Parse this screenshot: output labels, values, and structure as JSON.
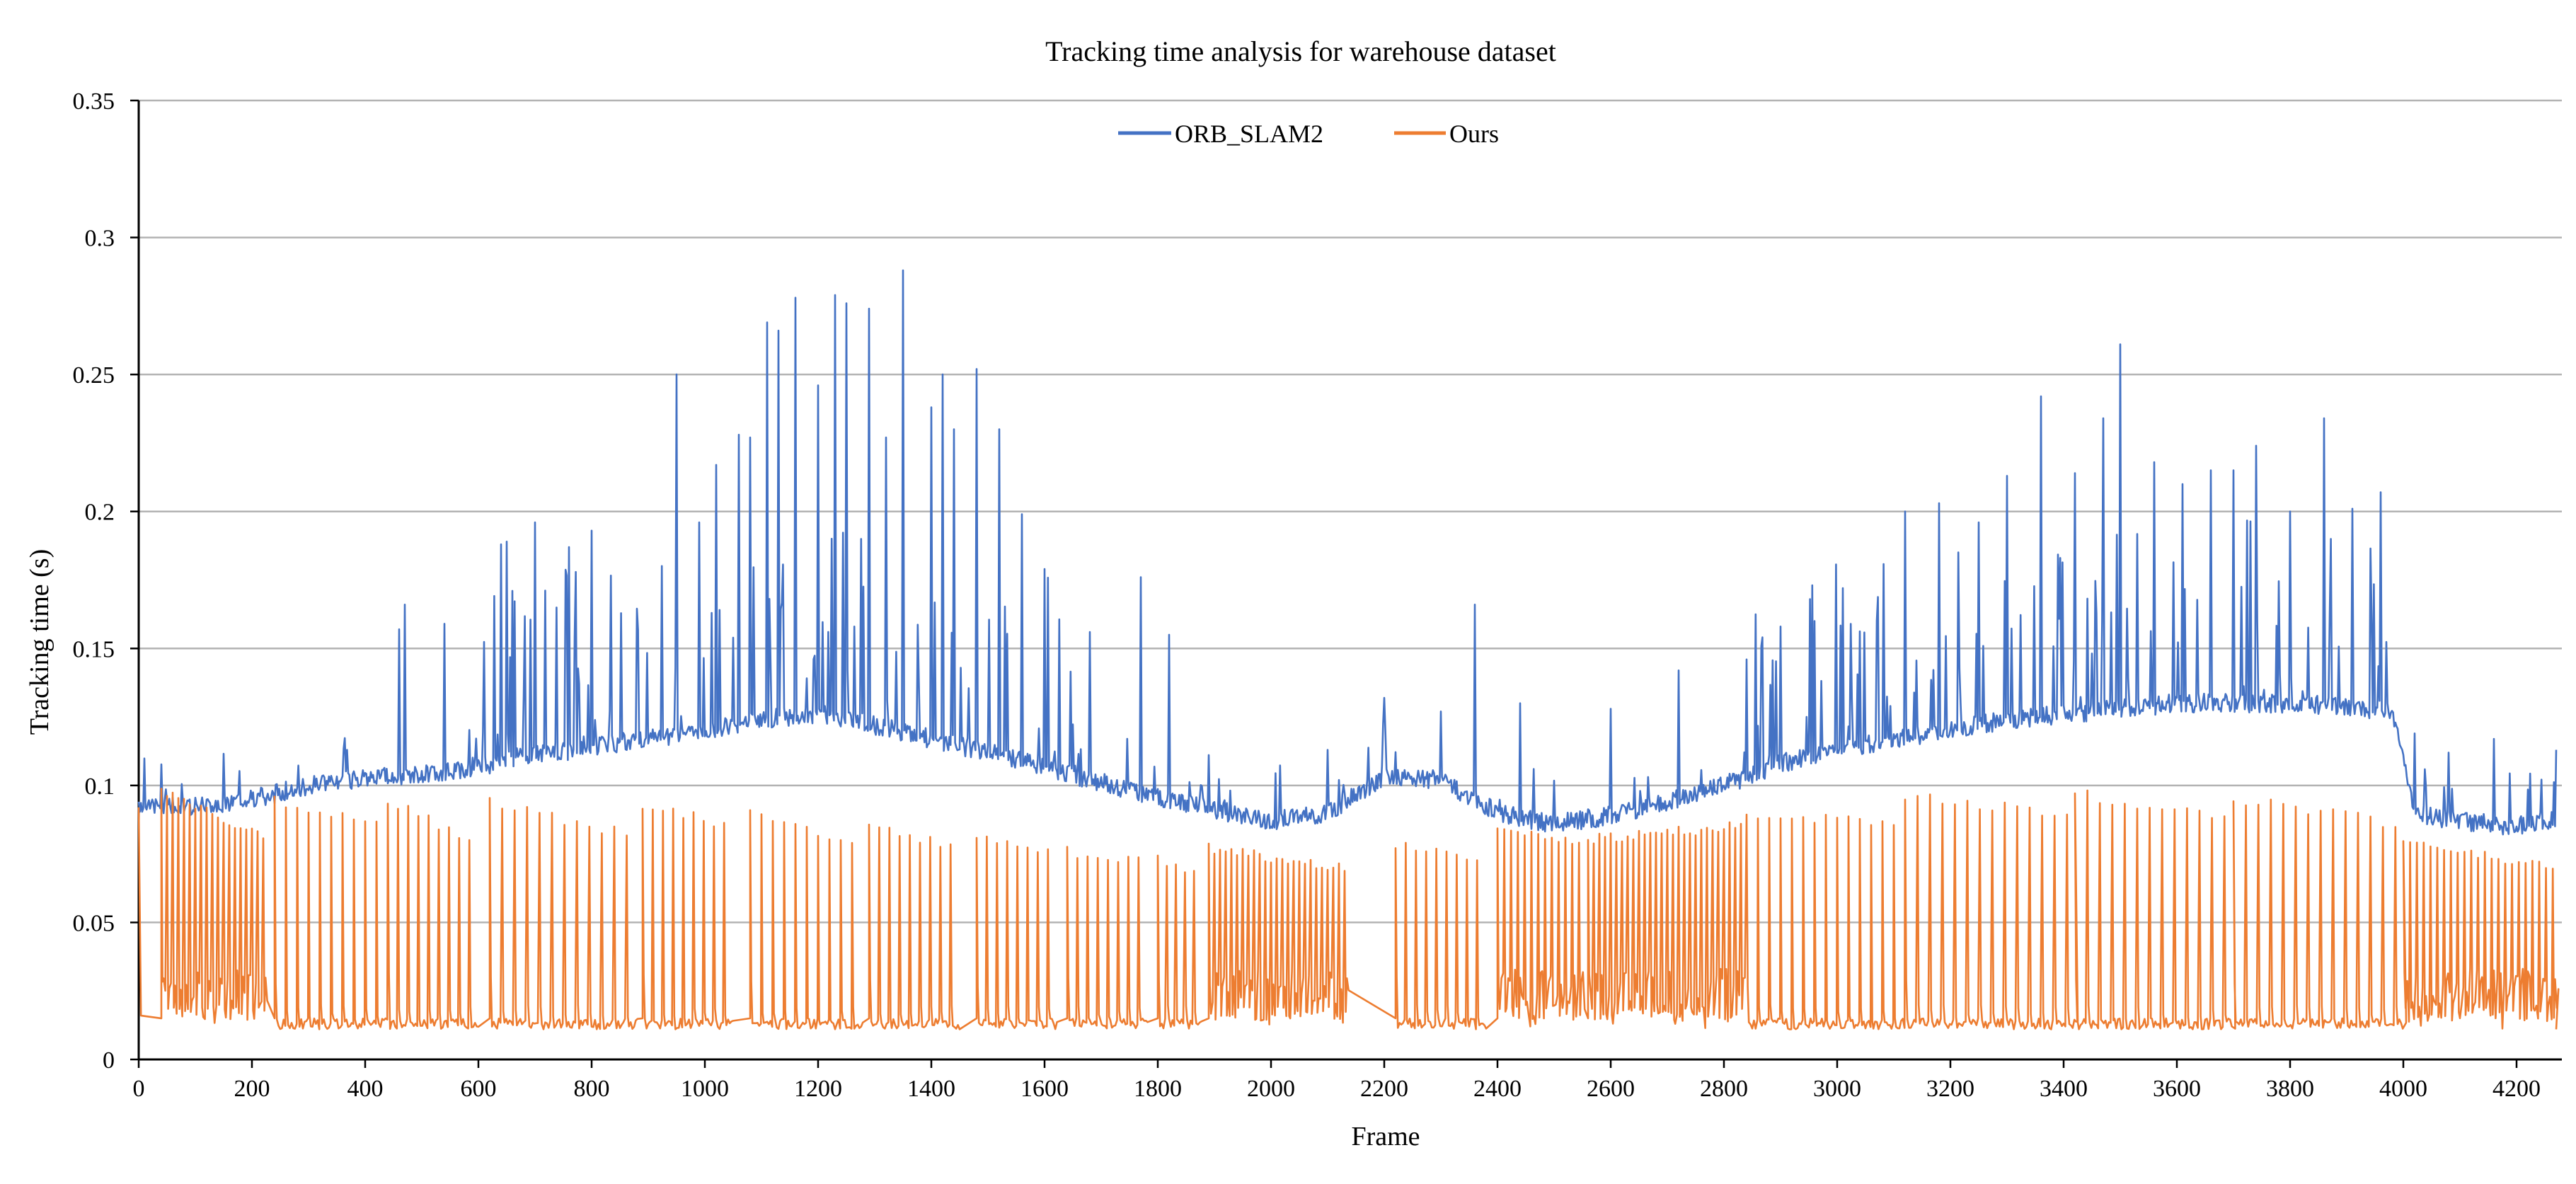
{
  "chart_data": {
    "type": "line",
    "title": "Tracking time analysis for warehouse dataset",
    "xlabel": "Frame",
    "ylabel": "Tracking time (s)",
    "xlim": [
      0,
      4280
    ],
    "ylim": [
      0,
      0.35
    ],
    "x_ticks": [
      0,
      200,
      400,
      600,
      800,
      1000,
      1200,
      1400,
      1600,
      1800,
      2000,
      2200,
      2400,
      2600,
      2800,
      3000,
      3200,
      3400,
      3600,
      3800,
      4000,
      4200
    ],
    "y_ticks": [
      0,
      0.05,
      0.1,
      0.15,
      0.2,
      0.25,
      0.3,
      0.35
    ],
    "y_tick_labels": [
      "0",
      "0.05",
      "0.1",
      "0.15",
      "0.2",
      "0.25",
      "0.3",
      "0.35"
    ],
    "grid": "horizontal",
    "legend_position": "top-center",
    "series": [
      {
        "name": "ORB_SLAM2",
        "color": "#4472C4",
        "baseline": {
          "x": [
            0,
            100,
            200,
            300,
            400,
            500,
            600,
            700,
            800,
            900,
            1000,
            1100,
            1200,
            1300,
            1400,
            1500,
            1600,
            1700,
            1800,
            1900,
            2000,
            2100,
            2200,
            2300,
            2400,
            2500,
            2600,
            2700,
            2800,
            2900,
            3000,
            3100,
            3200,
            3300,
            3400,
            3500,
            3600,
            3700,
            3800,
            3900,
            3980,
            4020,
            4100,
            4200,
            4270
          ],
          "y": [
            0.093,
            0.092,
            0.095,
            0.1,
            0.103,
            0.104,
            0.107,
            0.111,
            0.114,
            0.117,
            0.12,
            0.124,
            0.126,
            0.122,
            0.117,
            0.112,
            0.107,
            0.101,
            0.096,
            0.091,
            0.087,
            0.09,
            0.103,
            0.102,
            0.09,
            0.086,
            0.089,
            0.094,
            0.1,
            0.108,
            0.113,
            0.117,
            0.12,
            0.124,
            0.126,
            0.128,
            0.13,
            0.13,
            0.13,
            0.129,
            0.127,
            0.09,
            0.087,
            0.085,
            0.088
          ]
        },
        "peaks": [
          [
            460,
            0.157
          ],
          [
            470,
            0.166
          ],
          [
            540,
            0.159
          ],
          [
            640,
            0.188
          ],
          [
            650,
            0.189
          ],
          [
            700,
            0.196
          ],
          [
            760,
            0.187
          ],
          [
            800,
            0.193
          ],
          [
            950,
            0.25
          ],
          [
            990,
            0.196
          ],
          [
            1020,
            0.217
          ],
          [
            1060,
            0.228
          ],
          [
            1080,
            0.227
          ],
          [
            1110,
            0.269
          ],
          [
            1130,
            0.266
          ],
          [
            1160,
            0.278
          ],
          [
            1200,
            0.246
          ],
          [
            1230,
            0.279
          ],
          [
            1250,
            0.276
          ],
          [
            1290,
            0.274
          ],
          [
            1320,
            0.227
          ],
          [
            1350,
            0.288
          ],
          [
            1400,
            0.238
          ],
          [
            1420,
            0.25
          ],
          [
            1440,
            0.23
          ],
          [
            1480,
            0.252
          ],
          [
            1520,
            0.23
          ],
          [
            1560,
            0.199
          ],
          [
            1600,
            0.179
          ],
          [
            1680,
            0.156
          ],
          [
            1770,
            0.176
          ],
          [
            1820,
            0.155
          ],
          [
            2100,
            0.113
          ],
          [
            2200,
            0.132
          ],
          [
            2300,
            0.127
          ],
          [
            2360,
            0.166
          ],
          [
            2440,
            0.13
          ],
          [
            2600,
            0.128
          ],
          [
            2720,
            0.142
          ],
          [
            2840,
            0.146
          ],
          [
            2900,
            0.158
          ],
          [
            2960,
            0.16
          ],
          [
            3010,
            0.172
          ],
          [
            3120,
            0.2
          ],
          [
            3180,
            0.203
          ],
          [
            3250,
            0.196
          ],
          [
            3300,
            0.213
          ],
          [
            3360,
            0.242
          ],
          [
            3420,
            0.214
          ],
          [
            3470,
            0.234
          ],
          [
            3500,
            0.261
          ],
          [
            3560,
            0.218
          ],
          [
            3610,
            0.21
          ],
          [
            3660,
            0.215
          ],
          [
            3700,
            0.215
          ],
          [
            3740,
            0.224
          ],
          [
            3800,
            0.2
          ],
          [
            3860,
            0.234
          ],
          [
            3910,
            0.201
          ],
          [
            3960,
            0.207
          ],
          [
            4020,
            0.119
          ],
          [
            4080,
            0.112
          ],
          [
            4160,
            0.117
          ],
          [
            4270,
            0.113
          ]
        ]
      },
      {
        "name": "Ours",
        "color": "#ED7D31",
        "baseline_low": 0.011,
        "periodic_spikes": [
          {
            "x_start": 40,
            "x_end": 230,
            "interval": 10,
            "y_start": 0.098,
            "y_end": 0.081
          },
          {
            "x_start": 240,
            "x_end": 430,
            "interval": 20,
            "y_start": 0.094,
            "y_end": 0.085
          },
          {
            "x_start": 440,
            "x_end": 610,
            "interval": 18,
            "y_start": 0.094,
            "y_end": 0.081
          },
          {
            "x_start": 620,
            "x_end": 880,
            "interval": 22,
            "y_start": 0.094,
            "y_end": 0.082
          },
          {
            "x_start": 890,
            "x_end": 1050,
            "interval": 18,
            "y_start": 0.093,
            "y_end": 0.086
          },
          {
            "x_start": 1080,
            "x_end": 1270,
            "interval": 20,
            "y_start": 0.09,
            "y_end": 0.08
          },
          {
            "x_start": 1290,
            "x_end": 1460,
            "interval": 18,
            "y_start": 0.085,
            "y_end": 0.078
          },
          {
            "x_start": 1480,
            "x_end": 1620,
            "interval": 18,
            "y_start": 0.08,
            "y_end": 0.076
          },
          {
            "x_start": 1640,
            "x_end": 1780,
            "interval": 18,
            "y_start": 0.076,
            "y_end": 0.072
          },
          {
            "x_start": 1800,
            "x_end": 1880,
            "interval": 16,
            "y_start": 0.074,
            "y_end": 0.068
          },
          {
            "x_start": 1890,
            "x_end": 2140,
            "interval": 10,
            "y_start": 0.077,
            "y_end": 0.07
          },
          {
            "x_start": 2220,
            "x_end": 2380,
            "interval": 18,
            "y_start": 0.078,
            "y_end": 0.073
          },
          {
            "x_start": 2400,
            "x_end": 2560,
            "interval": 12,
            "y_start": 0.085,
            "y_end": 0.078
          },
          {
            "x_start": 2560,
            "x_end": 2840,
            "interval": 10,
            "y_start": 0.08,
            "y_end": 0.085
          },
          {
            "x_start": 2840,
            "x_end": 3120,
            "interval": 20,
            "y_start": 0.088,
            "y_end": 0.087
          },
          {
            "x_start": 3120,
            "x_end": 3420,
            "interval": 22,
            "y_start": 0.096,
            "y_end": 0.09
          },
          {
            "x_start": 3420,
            "x_end": 3700,
            "interval": 22,
            "y_start": 0.097,
            "y_end": 0.088
          },
          {
            "x_start": 3700,
            "x_end": 4000,
            "interval": 22,
            "y_start": 0.095,
            "y_end": 0.086
          },
          {
            "x_start": 4000,
            "x_end": 4270,
            "interval": 12,
            "y_start": 0.08,
            "y_end": 0.07
          }
        ]
      }
    ]
  }
}
